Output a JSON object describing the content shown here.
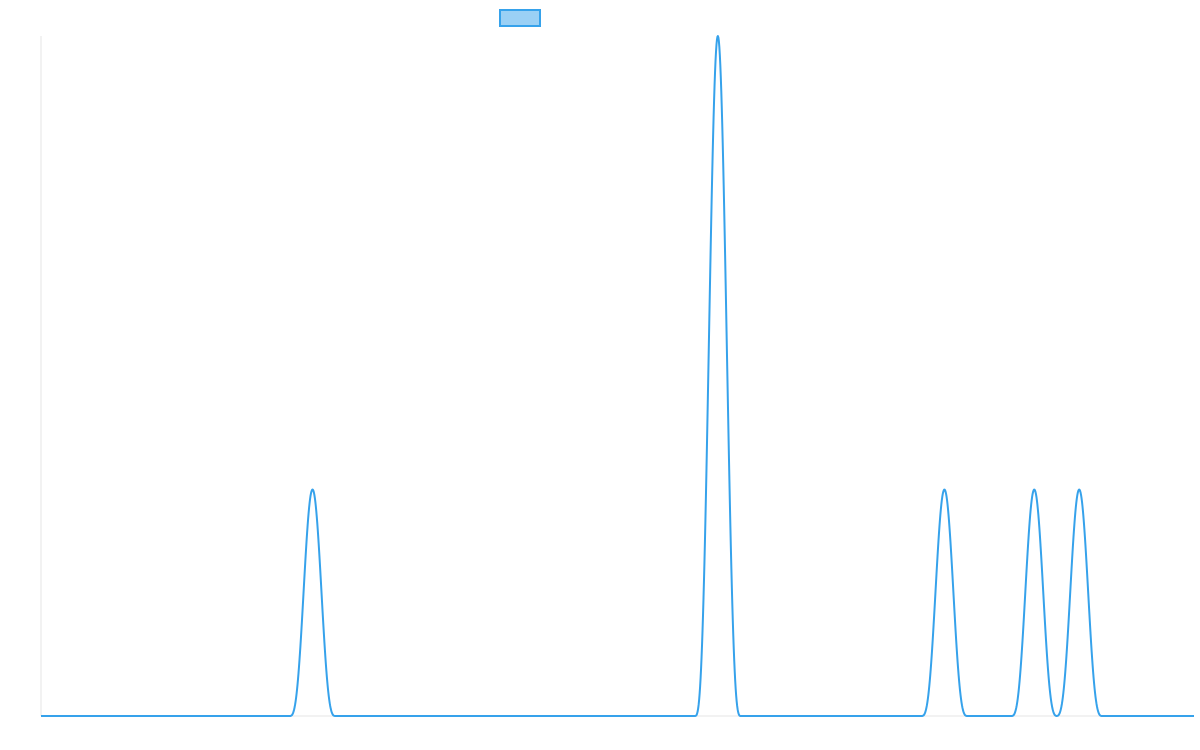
{
  "colors": {
    "series_line": "#36a2eb",
    "legend_fill": "#9ad0f5",
    "axis": "#e6e6e6"
  },
  "chart_data": {
    "type": "line",
    "title": "",
    "xlabel": "",
    "ylabel": "",
    "grid": false,
    "legend_position": "top",
    "x_range": [
      0,
      1155
    ],
    "ylim": [
      0,
      1
    ],
    "series": [
      {
        "name": "",
        "peaks": [
          {
            "center": 272,
            "height": 0.333,
            "half_width": 23
          },
          {
            "center": 678,
            "height": 1.0,
            "half_width": 23
          },
          {
            "center": 905,
            "height": 0.333,
            "half_width": 23
          },
          {
            "center": 995,
            "height": 0.333,
            "half_width": 23
          },
          {
            "center": 1040,
            "height": 0.333,
            "half_width": 23
          }
        ]
      }
    ]
  }
}
